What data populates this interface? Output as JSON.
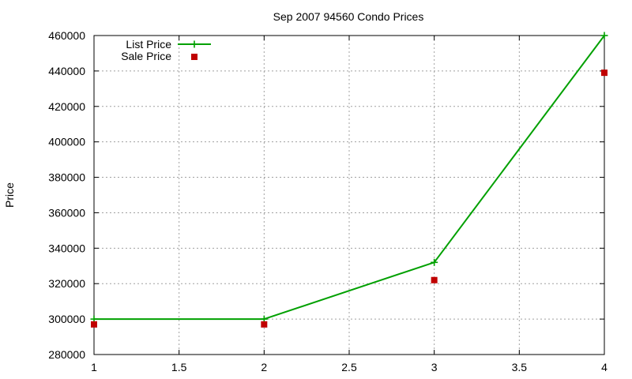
{
  "chart_data": {
    "type": "line",
    "title": "Sep 2007 94560 Condo Prices",
    "xlabel": "",
    "ylabel": "Price",
    "xlim": [
      1,
      4
    ],
    "ylim": [
      280000,
      460000
    ],
    "xticks": [
      "1",
      "1.5",
      "2",
      "2.5",
      "3",
      "3.5",
      "4"
    ],
    "yticks": [
      "280000",
      "300000",
      "320000",
      "340000",
      "360000",
      "380000",
      "400000",
      "420000",
      "440000",
      "460000"
    ],
    "grid": true,
    "legend_position": "top-left",
    "series": [
      {
        "name": "List Price",
        "style": "line+marker",
        "marker": "plus",
        "color": "#00a000",
        "x": [
          1,
          2,
          3,
          4
        ],
        "y": [
          300000,
          300000,
          332000,
          460000
        ]
      },
      {
        "name": "Sale Price",
        "style": "marker",
        "marker": "square",
        "color": "#c00000",
        "x": [
          1,
          2,
          3,
          4
        ],
        "y": [
          297000,
          297000,
          322000,
          439000
        ]
      }
    ]
  }
}
